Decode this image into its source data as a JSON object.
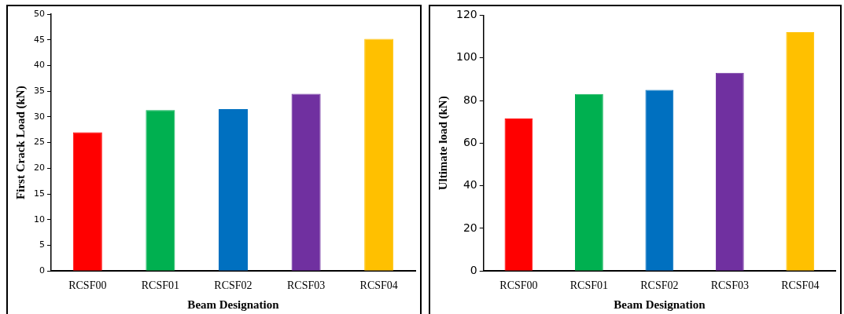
{
  "chart_data": [
    {
      "type": "bar",
      "xlabel": "Beam Designation",
      "ylabel": "First Crack Load (kN)",
      "categories": [
        "RCSF00",
        "RCSF01",
        "RCSF02",
        "RCSF03",
        "RCSF04"
      ],
      "values": [
        27,
        31.3,
        31.5,
        34.5,
        45.2
      ],
      "colors": [
        "#ff0000",
        "#00b050",
        "#0070c0",
        "#7030a0",
        "#ffc000"
      ],
      "ylim": [
        0,
        50
      ],
      "yticks": [
        0,
        5,
        10,
        15,
        20,
        25,
        30,
        35,
        40,
        45,
        50
      ],
      "grid": false,
      "legend": false
    },
    {
      "type": "bar",
      "xlabel": "Beam Designation",
      "ylabel": "Ultimate load (kN)",
      "categories": [
        "RCSF00",
        "RCSF01",
        "RCSF02",
        "RCSF03",
        "RCSF04"
      ],
      "values": [
        71.5,
        83,
        85,
        93,
        112
      ],
      "colors": [
        "#ff0000",
        "#00b050",
        "#0070c0",
        "#7030a0",
        "#ffc000"
      ],
      "ylim": [
        0,
        120
      ],
      "yticks": [
        0,
        20,
        40,
        60,
        80,
        100,
        120
      ],
      "grid": false,
      "legend": false
    }
  ]
}
